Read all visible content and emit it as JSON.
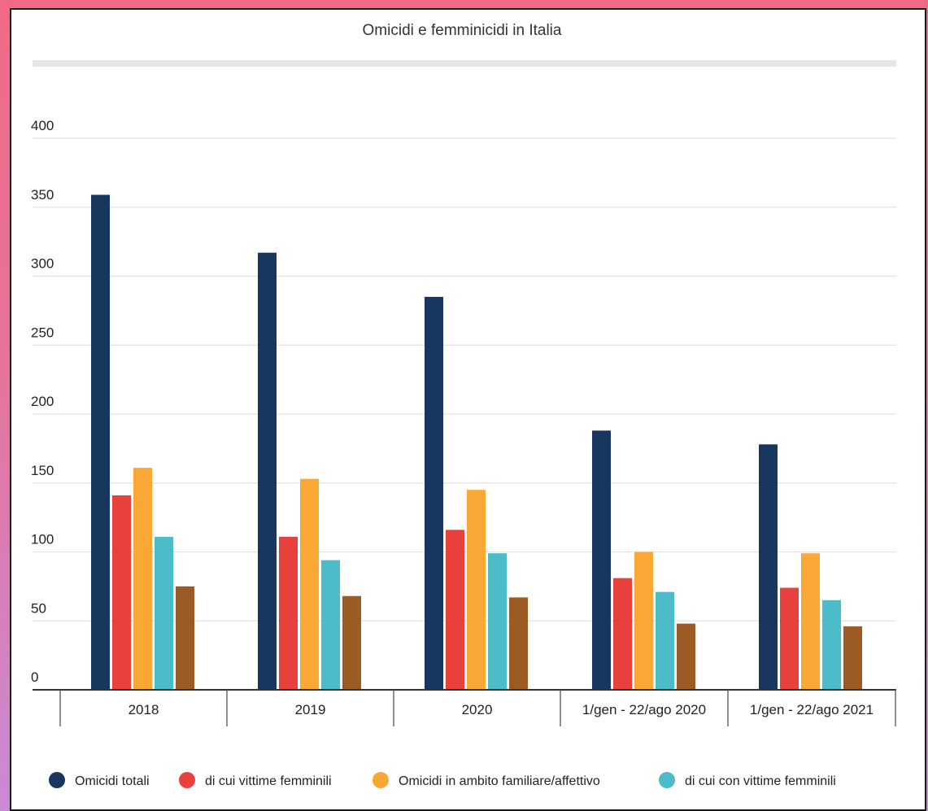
{
  "chart_data": {
    "type": "bar",
    "title": "Omicidi e femminicidi in Italia",
    "categories": [
      "2018",
      "2019",
      "2020",
      "1/gen - 22/ago 2020",
      "1/gen - 22/ago 2021"
    ],
    "ylim": [
      0,
      400
    ],
    "yticks": [
      0,
      50,
      100,
      150,
      200,
      250,
      300,
      350,
      400
    ],
    "grid": true,
    "legend_position": "bottom",
    "series": [
      {
        "name": "Omicidi totali",
        "color": "#17375e",
        "values": [
          359,
          317,
          285,
          188,
          178
        ]
      },
      {
        "name": "di cui vittime femminili",
        "color": "#e8403d",
        "values": [
          141,
          111,
          116,
          81,
          74
        ]
      },
      {
        "name": "Omicidi in ambito familiare/affettivo",
        "color": "#f9a835",
        "values": [
          161,
          153,
          145,
          100,
          99
        ]
      },
      {
        "name": "di cui con vittime femminili",
        "color": "#4bbcc8",
        "values": [
          111,
          94,
          99,
          71,
          65
        ]
      },
      {
        "name": "",
        "color": "#9c5a24",
        "values": [
          75,
          68,
          67,
          48,
          46
        ]
      }
    ]
  }
}
